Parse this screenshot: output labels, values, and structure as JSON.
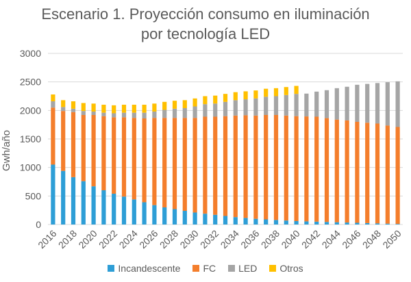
{
  "chart_data": {
    "type": "bar",
    "stacked": true,
    "title_line1": "Escenario 1. Proyección consumo en iluminación",
    "title_line2": "por tecnología LED",
    "xlabel": "",
    "ylabel": "Gwh/año",
    "ylim": [
      0,
      3000
    ],
    "yticks": [
      0,
      500,
      1000,
      1500,
      2000,
      2500,
      3000
    ],
    "grid": true,
    "legend_position": "bottom",
    "categories": [
      2016,
      2017,
      2018,
      2019,
      2020,
      2021,
      2022,
      2023,
      2024,
      2025,
      2026,
      2027,
      2028,
      2029,
      2030,
      2031,
      2032,
      2033,
      2034,
      2035,
      2036,
      2037,
      2038,
      2039,
      2040,
      2041,
      2042,
      2043,
      2044,
      2045,
      2046,
      2047,
      2048,
      2049,
      2050
    ],
    "xtick_labels": [
      "2016",
      "2018",
      "2020",
      "2022",
      "2024",
      "2026",
      "2028",
      "2030",
      "2032",
      "2034",
      "2036",
      "2038",
      "2040",
      "2042",
      "2044",
      "2046",
      "2048",
      "2050"
    ],
    "series": [
      {
        "name": "Incandescente",
        "color": "#2E9ED6",
        "values": [
          1050,
          940,
          830,
          760,
          670,
          600,
          540,
          490,
          440,
          390,
          340,
          300,
          270,
          240,
          210,
          190,
          170,
          150,
          130,
          115,
          100,
          90,
          80,
          70,
          60,
          55,
          50,
          45,
          40,
          35,
          30,
          25,
          20,
          15,
          10
        ]
      },
      {
        "name": "FC",
        "color": "#F47E2C",
        "values": [
          1000,
          1050,
          1140,
          1160,
          1250,
          1300,
          1340,
          1390,
          1430,
          1470,
          1530,
          1570,
          1600,
          1630,
          1660,
          1700,
          1720,
          1750,
          1780,
          1800,
          1810,
          1830,
          1840,
          1840,
          1840,
          1840,
          1840,
          1820,
          1800,
          1790,
          1770,
          1760,
          1750,
          1720,
          1700
        ]
      },
      {
        "name": "LED",
        "color": "#A5A5A5",
        "values": [
          110,
          70,
          60,
          70,
          60,
          60,
          70,
          80,
          90,
          100,
          110,
          140,
          160,
          170,
          200,
          220,
          230,
          250,
          270,
          280,
          300,
          320,
          330,
          360,
          390,
          400,
          440,
          490,
          550,
          590,
          650,
          680,
          710,
          760,
          800
        ]
      },
      {
        "name": "Otros",
        "color": "#FFC000",
        "values": [
          120,
          120,
          130,
          140,
          140,
          140,
          140,
          140,
          140,
          140,
          140,
          140,
          140,
          140,
          140,
          140,
          140,
          140,
          140,
          140,
          140,
          140,
          140,
          140,
          140,
          0,
          0,
          0,
          0,
          0,
          0,
          0,
          0,
          0,
          0
        ]
      }
    ]
  }
}
